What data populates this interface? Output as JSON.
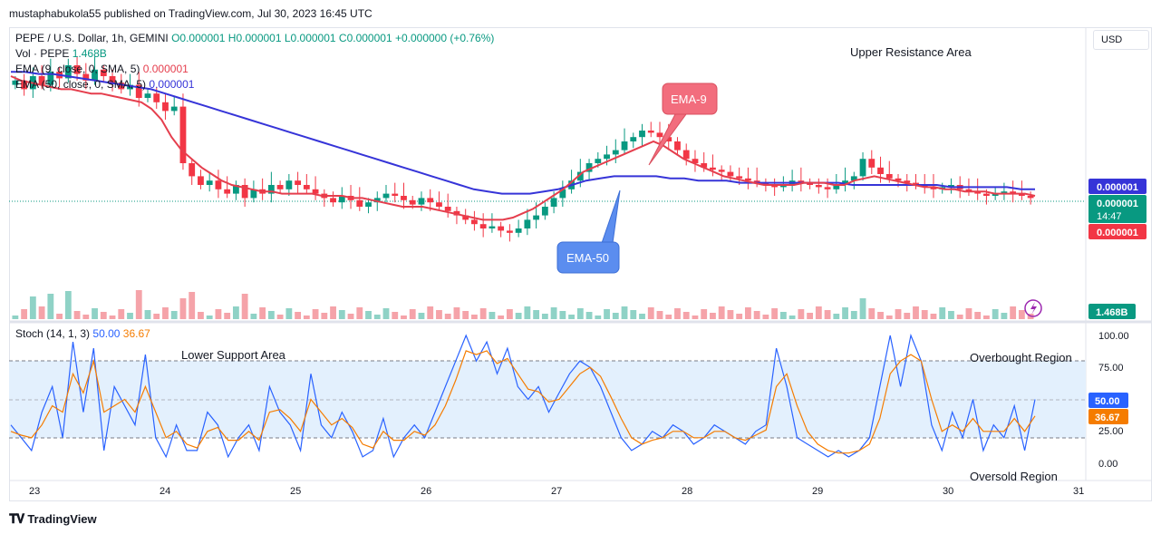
{
  "header": {
    "published_by": "mustaphabukola55 published on TradingView.com, Jul 30, 2023 16:45 UTC"
  },
  "legend": {
    "symbol": "PEPE / U.S. Dollar, 1h, GEMINI",
    "ohlc": "O0.000001 H0.000001 L0.000001 C0.000001 +0.000000 (+0.76%)",
    "vol_label": "Vol · PEPE",
    "vol_value": "1.468B",
    "ema9_label": "EMA (9, close, 0, SMA, 5)",
    "ema9_value": "0.000001",
    "ema50_label": "EMA (50, close, 0, SMA, 5)",
    "ema50_value": "0.000001",
    "stoch_label": "Stoch (14, 1, 3)",
    "stoch_k": "50.00",
    "stoch_d": "36.67"
  },
  "currency_button": "USD",
  "annotations": {
    "upper_resistance": "Upper Resistance Area",
    "lower_support": "Lower Support Area",
    "overbought": "Overbought Region",
    "oversold": "Oversold Region",
    "ema9_callout": "EMA-9",
    "ema50_callout": "EMA-50"
  },
  "price_badges": {
    "ema50": "0.000001",
    "last_price": "0.000001",
    "countdown": "14:47",
    "ema9": "0.000001",
    "volume": "1.468B"
  },
  "stoch_axis": [
    "100.00",
    "75.00",
    "50.00",
    "25.00",
    "0.00"
  ],
  "footer": {
    "brand": "TradingView"
  },
  "colors": {
    "up": "#089981",
    "down": "#f23645",
    "ema9": "#e53e4d",
    "ema50": "#3634d8",
    "stoch_k": "#2962ff",
    "stoch_d": "#f57c00",
    "band": "#e3f0fd"
  },
  "chart_data": {
    "type": "candlestick",
    "x_ticks": [
      "23",
      "24",
      "25",
      "26",
      "27",
      "28",
      "29",
      "30",
      "31"
    ],
    "ylim_price_index": [
      0,
      100
    ],
    "candles_close_index": [
      88,
      84,
      90,
      86,
      92,
      89,
      95,
      91,
      88,
      93,
      90,
      87,
      84,
      86,
      80,
      82,
      78,
      74,
      76,
      50,
      44,
      40,
      42,
      38,
      36,
      40,
      34,
      38,
      36,
      40,
      38,
      42,
      40,
      38,
      36,
      34,
      32,
      35,
      33,
      30,
      32,
      34,
      36,
      35,
      33,
      31,
      34,
      32,
      30,
      28,
      26,
      24,
      22,
      20,
      21,
      19,
      18,
      20,
      24,
      26,
      30,
      34,
      38,
      42,
      46,
      50,
      52,
      54,
      56,
      60,
      62,
      65,
      64,
      62,
      60,
      56,
      52,
      50,
      48,
      47,
      46,
      44,
      43,
      42,
      41,
      40,
      39,
      40,
      42,
      41,
      40,
      39,
      38,
      40,
      42,
      44,
      52,
      48,
      45,
      43,
      42,
      41,
      40,
      39,
      38,
      39,
      40,
      38,
      37,
      36,
      35,
      36,
      37,
      36,
      35,
      34
    ],
    "ema9_index": [
      90,
      88,
      87,
      86,
      85,
      84,
      84,
      83,
      82,
      82,
      81,
      80,
      79,
      78,
      75,
      70,
      62,
      56,
      52,
      48,
      45,
      42,
      40,
      39,
      38,
      37,
      37,
      36,
      36,
      36,
      36,
      35,
      35,
      35,
      34,
      34,
      33,
      32,
      31,
      30,
      30,
      30,
      29,
      28,
      27,
      26,
      25,
      24,
      24,
      24,
      25,
      27,
      29,
      32,
      35,
      38,
      42,
      46,
      48,
      50,
      52,
      54,
      56,
      58,
      60,
      58,
      55,
      52,
      50,
      48,
      46,
      44,
      43,
      42,
      41,
      40,
      40,
      40,
      40,
      41,
      41,
      41,
      40,
      40,
      42,
      43,
      44,
      43,
      42,
      41,
      40,
      39,
      39,
      38,
      38,
      37,
      37,
      37,
      36,
      36,
      36,
      36,
      35
    ],
    "ema50_index": [
      92,
      92,
      91,
      91,
      90,
      89,
      88,
      87,
      86,
      85,
      84,
      82,
      80,
      78,
      76,
      74,
      72,
      70,
      68,
      66,
      64,
      62,
      60,
      58,
      56,
      54,
      52,
      50,
      48,
      46,
      44,
      42,
      40,
      38,
      37,
      36,
      36,
      36,
      37,
      38,
      40,
      42,
      43,
      44,
      44,
      44,
      44,
      43,
      43,
      42,
      42,
      42,
      41,
      41,
      41,
      41,
      41,
      41,
      41,
      41,
      40,
      40,
      40,
      40,
      40,
      40,
      40,
      39,
      39,
      39,
      39,
      39,
      38,
      38
    ],
    "stoch_k": [
      30,
      20,
      10,
      40,
      60,
      20,
      95,
      40,
      90,
      10,
      60,
      45,
      30,
      85,
      20,
      5,
      30,
      10,
      10,
      40,
      30,
      5,
      20,
      30,
      10,
      60,
      40,
      30,
      10,
      70,
      30,
      20,
      40,
      25,
      5,
      10,
      35,
      5,
      20,
      30,
      20,
      40,
      60,
      80,
      100,
      80,
      95,
      70,
      90,
      60,
      50,
      60,
      40,
      55,
      70,
      80,
      75,
      60,
      40,
      20,
      10,
      15,
      25,
      20,
      30,
      25,
      15,
      20,
      30,
      25,
      20,
      15,
      25,
      30,
      90,
      60,
      20,
      15,
      10,
      5,
      10,
      5,
      10,
      20,
      60,
      100,
      60,
      100,
      80,
      30,
      10,
      40,
      20,
      50,
      10,
      30,
      20,
      45,
      10,
      50
    ],
    "stoch_d": [
      25,
      22,
      20,
      30,
      45,
      40,
      70,
      55,
      80,
      40,
      45,
      50,
      40,
      60,
      40,
      20,
      25,
      15,
      12,
      25,
      28,
      18,
      18,
      25,
      18,
      40,
      42,
      35,
      25,
      50,
      40,
      30,
      35,
      28,
      15,
      12,
      25,
      18,
      18,
      25,
      22,
      30,
      45,
      65,
      88,
      85,
      88,
      78,
      82,
      70,
      58,
      56,
      48,
      50,
      60,
      70,
      75,
      68,
      52,
      35,
      20,
      15,
      18,
      20,
      25,
      25,
      20,
      20,
      25,
      25,
      20,
      18,
      22,
      26,
      60,
      70,
      45,
      25,
      15,
      10,
      8,
      8,
      10,
      15,
      35,
      70,
      80,
      85,
      80,
      50,
      25,
      30,
      25,
      35,
      25,
      25,
      25,
      35,
      25,
      37
    ]
  }
}
